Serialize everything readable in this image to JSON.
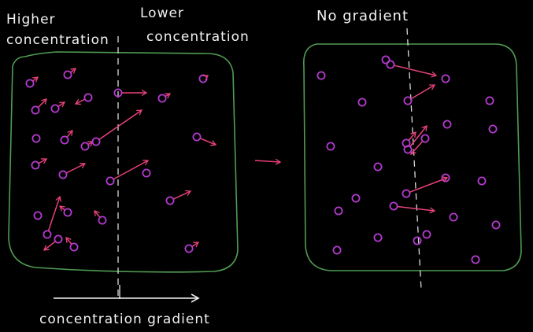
{
  "labels": {
    "higher_line1": "Higher",
    "higher_line2": "concentration",
    "lower_line1": "Lower",
    "lower_line2": "concentration",
    "no_gradient": "No gradient",
    "gradient": "concentration gradient"
  },
  "colors": {
    "background": "#000000",
    "container": "#4f9c52",
    "particle": "#b33bd0",
    "arrow": "#e8417c",
    "divider": "#d9d9d9",
    "text": "#f2f2f2"
  },
  "left_container": {
    "particle_count": 25,
    "moving_particles": 18
  },
  "right_container": {
    "particle_count": 27,
    "moving_particles": 7
  }
}
